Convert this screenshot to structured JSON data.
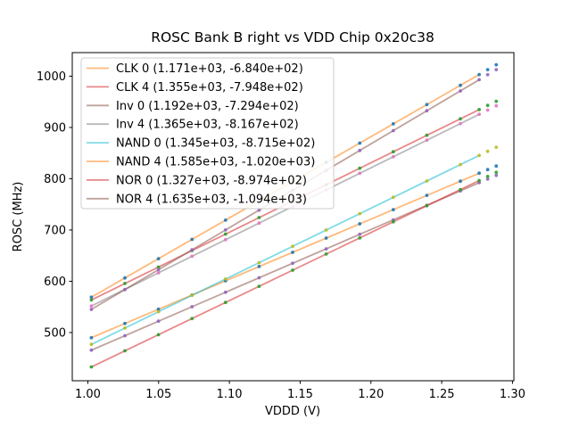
{
  "figure": {
    "background_color": "#ffffff",
    "spine_color": "#000000",
    "legend_border_color": "#cccccc",
    "legend_background": "#ffffff"
  },
  "chart_data": {
    "type": "scatter",
    "title": "ROSC Bank B right vs VDD Chip 0x20c38",
    "xlabel": "VDDD (V)",
    "ylabel": "ROSC (MHz)",
    "xlim": [
      0.989,
      1.301
    ],
    "ylim": [
      406,
      1046
    ],
    "grid": false,
    "legend_position": "upper left",
    "legend_entry_format": "name (slope, intercept)",
    "xticks": [
      {
        "v": 1.0,
        "label": "1.00"
      },
      {
        "v": 1.05,
        "label": "1.05"
      },
      {
        "v": 1.1,
        "label": "1.10"
      },
      {
        "v": 1.15,
        "label": "1.15"
      },
      {
        "v": 1.2,
        "label": "1.20"
      },
      {
        "v": 1.25,
        "label": "1.25"
      },
      {
        "v": 1.3,
        "label": "1.30"
      }
    ],
    "yticks": [
      {
        "v": 500,
        "label": "500"
      },
      {
        "v": 600,
        "label": "600"
      },
      {
        "v": 700,
        "label": "700"
      },
      {
        "v": 800,
        "label": "800"
      },
      {
        "v": 900,
        "label": "900"
      },
      {
        "v": 1000,
        "label": "1000"
      }
    ],
    "x": [
      1.0025,
      1.0262,
      1.0499,
      1.0736,
      1.0973,
      1.121,
      1.1447,
      1.1684,
      1.1921,
      1.2158,
      1.2395,
      1.2632,
      1.2765,
      1.2825,
      1.2885
    ],
    "fit_line_span": [
      1.0025,
      1.2765
    ],
    "series": [
      {
        "name": "CLK 0",
        "label": "CLK 0 (1.171e+03, -6.840e+02)",
        "slope": 1171.0,
        "intercept": -684.0,
        "line_color": "#ff7f0e",
        "dot_color": "#1f77b4",
        "y": [
          489.9,
          517.7,
          545.4,
          573.2,
          601.0,
          628.7,
          656.4,
          684.2,
          712.0,
          739.7,
          767.5,
          795.2,
          810.8,
          817.8,
          824.8
        ]
      },
      {
        "name": "CLK 4",
        "label": "CLK 4 (1.355e+03, -7.948e+02)",
        "slope": 1355.0,
        "intercept": -794.8,
        "line_color": "#d62728",
        "dot_color": "#2ca02c",
        "y": [
          563.6,
          595.7,
          627.8,
          659.9,
          692.0,
          724.2,
          756.3,
          788.4,
          820.5,
          852.6,
          884.7,
          916.8,
          934.9,
          943.0,
          951.1
        ]
      },
      {
        "name": "Inv 0",
        "label": "Inv 0 (1.192e+03, -7.294e+02)",
        "slope": 1192.0,
        "intercept": -729.4,
        "line_color": "#8c564b",
        "dot_color": "#9467bd",
        "y": [
          465.6,
          493.8,
          522.1,
          550.3,
          578.6,
          606.8,
          635.1,
          663.3,
          691.6,
          719.8,
          748.1,
          776.3,
          792.2,
          799.3,
          806.5
        ]
      },
      {
        "name": "Inv 4",
        "label": "Inv 4 (1.365e+03, -8.167e+02)",
        "slope": 1365.0,
        "intercept": -816.7,
        "line_color": "#7f7f7f",
        "dot_color": "#e377c2",
        "y": [
          551.7,
          584.1,
          616.4,
          648.8,
          681.1,
          713.5,
          745.8,
          778.2,
          810.5,
          842.9,
          875.2,
          907.6,
          925.7,
          933.9,
          942.1
        ]
      },
      {
        "name": "NAND 0",
        "label": "NAND 0 (1.345e+03, -8.715e+02)",
        "slope": 1345.0,
        "intercept": -871.5,
        "line_color": "#17becf",
        "dot_color": "#bcbd22",
        "y": [
          476.9,
          508.7,
          540.6,
          572.5,
          604.4,
          636.2,
          668.1,
          700.0,
          731.9,
          763.8,
          795.6,
          827.5,
          845.4,
          853.5,
          861.5
        ]
      },
      {
        "name": "NAND 4",
        "label": "NAND 4 (1.585e+03, -1.020e+03)",
        "slope": 1585.0,
        "intercept": -1020.0,
        "line_color": "#ff7f0e",
        "dot_color": "#1f77b4",
        "y": [
          569.0,
          606.5,
          644.1,
          681.7,
          719.2,
          756.8,
          794.3,
          831.9,
          869.5,
          907.0,
          944.6,
          982.2,
          1003.3,
          1012.8,
          1022.3
        ]
      },
      {
        "name": "NOR 0",
        "label": "NOR 0 (1.327e+03, -8.974e+02)",
        "slope": 1327.0,
        "intercept": -897.4,
        "line_color": "#d62728",
        "dot_color": "#2ca02c",
        "y": [
          432.9,
          464.4,
          495.8,
          527.3,
          558.7,
          590.2,
          621.6,
          653.1,
          684.5,
          716.0,
          747.4,
          778.9,
          796.5,
          804.5,
          812.4
        ]
      },
      {
        "name": "NOR 4",
        "label": "NOR 4 (1.635e+03, -1.094e+03)",
        "slope": 1635.0,
        "intercept": -1094.0,
        "line_color": "#8c564b",
        "dot_color": "#9467bd",
        "y": [
          545.1,
          583.8,
          622.6,
          661.3,
          700.1,
          738.8,
          777.6,
          816.3,
          855.1,
          893.8,
          932.6,
          971.3,
          993.1,
          1002.9,
          1012.7
        ]
      }
    ]
  }
}
